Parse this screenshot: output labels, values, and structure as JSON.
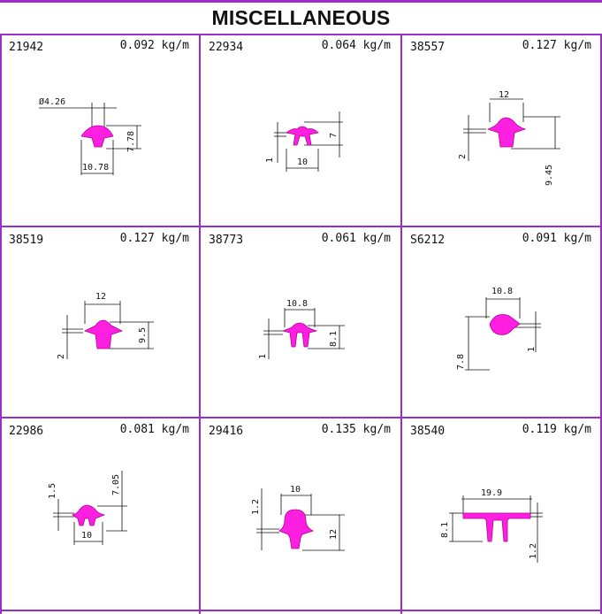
{
  "header": {
    "title": "MISCELLANEOUS"
  },
  "colors": {
    "profile": "#ff1fe0",
    "border": "#9b2ec8",
    "dimension": "#111111"
  },
  "profiles": [
    {
      "code": "21942",
      "weight": "0.092 kg/m",
      "dims": {
        "d1": "Ø4.26",
        "d2": "7.78",
        "d3": "10.78"
      }
    },
    {
      "code": "22934",
      "weight": "0.064 kg/m",
      "dims": {
        "d1": "7",
        "d2": "1",
        "d3": "10"
      }
    },
    {
      "code": "38557",
      "weight": "0.127 kg/m",
      "dims": {
        "d1": "12",
        "d2": "2",
        "d3": "9.45"
      }
    },
    {
      "code": "38519",
      "weight": "0.127 kg/m",
      "dims": {
        "d1": "12",
        "d2": "9.5",
        "d3": "2"
      }
    },
    {
      "code": "38773",
      "weight": "0.061 kg/m",
      "dims": {
        "d1": "10.8",
        "d2": "8.1",
        "d3": "1"
      }
    },
    {
      "code": "S6212",
      "weight": "0.091 kg/m",
      "dims": {
        "d1": "10.8",
        "d2": "1",
        "d3": "7.8"
      }
    },
    {
      "code": "22986",
      "weight": "0.081 kg/m",
      "dims": {
        "d1": "7.05",
        "d2": "1.5",
        "d3": "10"
      }
    },
    {
      "code": "29416",
      "weight": "0.135 kg/m",
      "dims": {
        "d1": "10",
        "d2": "1.2",
        "d3": "12"
      }
    },
    {
      "code": "38540",
      "weight": "0.119 kg/m",
      "dims": {
        "d1": "19.9",
        "d2": "8.1",
        "d3": "1.2"
      }
    }
  ]
}
